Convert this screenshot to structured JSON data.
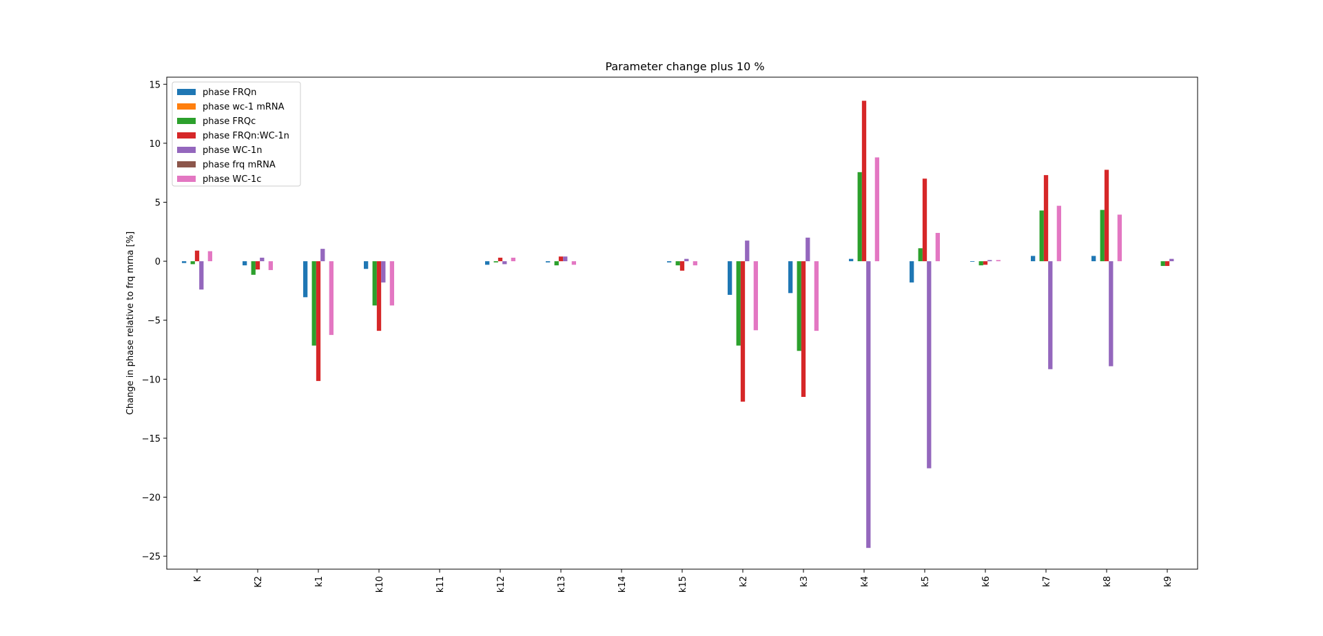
{
  "chart_data": {
    "type": "bar",
    "title": "Parameter change plus 10 %",
    "xlabel": "",
    "ylabel": "Change in phase relative to frq mrna [%]",
    "ylim": [
      -26.1,
      15.6
    ],
    "yticks": [
      15,
      10,
      5,
      0,
      -5,
      -10,
      -15,
      -20,
      -25
    ],
    "grid": false,
    "legend_position": "top-left",
    "categories": [
      "K",
      "K2",
      "k1",
      "k10",
      "k11",
      "k12",
      "k13",
      "k14",
      "k15",
      "k2",
      "k3",
      "k4",
      "k5",
      "k6",
      "k7",
      "k8",
      "k9"
    ],
    "series": [
      {
        "name": "phase FRQn",
        "color": "#1f77b4",
        "values": [
          -0.15,
          -0.35,
          -3.05,
          -0.65,
          0,
          -0.3,
          -0.1,
          0,
          -0.1,
          -2.85,
          -2.7,
          0.2,
          -1.8,
          -0.05,
          0.45,
          0.45,
          0
        ]
      },
      {
        "name": "phase wc-1 mRNA",
        "color": "#ff7f0e",
        "values": [
          0,
          0,
          0,
          0,
          0,
          0,
          0,
          0,
          0,
          0,
          0,
          0,
          0,
          0,
          0,
          0,
          0
        ]
      },
      {
        "name": "phase FRQc",
        "color": "#2ca02c",
        "values": [
          -0.25,
          -1.15,
          -7.15,
          -3.75,
          0,
          -0.1,
          -0.35,
          0,
          -0.35,
          -7.15,
          -7.6,
          7.55,
          1.1,
          -0.35,
          4.3,
          4.35,
          -0.4
        ]
      },
      {
        "name": "phase FRQn:WC-1n",
        "color": "#d62728",
        "values": [
          0.9,
          -0.7,
          -10.15,
          -5.9,
          0,
          0.3,
          0.4,
          0,
          -0.8,
          -11.9,
          -11.5,
          13.6,
          7.0,
          -0.3,
          7.3,
          7.75,
          -0.4
        ]
      },
      {
        "name": "phase WC-1n",
        "color": "#9467bd",
        "values": [
          -2.4,
          0.3,
          1.05,
          -1.8,
          0,
          -0.25,
          0.4,
          0,
          0.2,
          1.75,
          2.0,
          -24.3,
          -17.55,
          0.1,
          -9.15,
          -8.9,
          0.2
        ]
      },
      {
        "name": "phase frq mRNA",
        "color": "#8c564b",
        "values": [
          0,
          0,
          0,
          0,
          0,
          0,
          0,
          0,
          0,
          0,
          0,
          0,
          0,
          0,
          0,
          0,
          0
        ]
      },
      {
        "name": "phase WC-1c",
        "color": "#e377c2",
        "values": [
          0.85,
          -0.75,
          -6.25,
          -3.75,
          0,
          0.3,
          -0.3,
          0,
          -0.35,
          -5.85,
          -5.9,
          8.8,
          2.4,
          0.1,
          4.7,
          3.95,
          0
        ]
      }
    ]
  }
}
